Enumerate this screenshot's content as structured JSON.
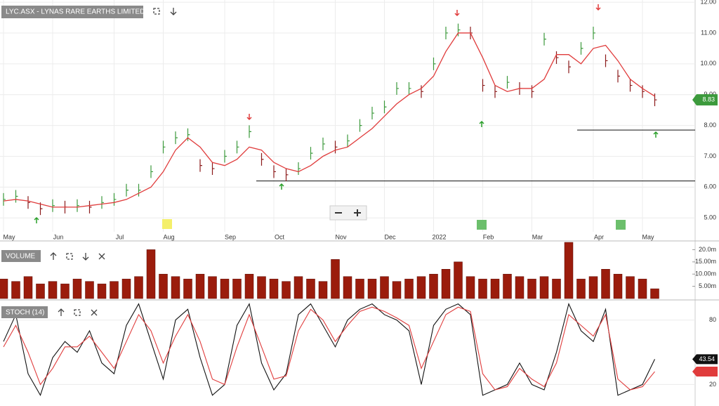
{
  "chart_data": [
    {
      "type": "ohlc",
      "title": "LYC.ASX - LYNAS RARE EARTHS LIMITED",
      "categories": [
        "May",
        null,
        null,
        null,
        "Jun",
        null,
        null,
        null,
        null,
        "Jul",
        null,
        null,
        null,
        "Aug",
        null,
        null,
        null,
        null,
        "Sep",
        null,
        null,
        null,
        "Oct",
        null,
        null,
        null,
        null,
        "Nov",
        null,
        null,
        null,
        "Dec",
        null,
        null,
        null,
        "2022",
        null,
        null,
        null,
        "Feb",
        null,
        null,
        null,
        "Mar",
        null,
        null,
        null,
        null,
        "Apr",
        null,
        null,
        null,
        "May",
        null
      ],
      "values": [
        5.6,
        5.7,
        5.5,
        5.3,
        5.4,
        5.35,
        5.4,
        5.35,
        5.5,
        5.6,
        5.9,
        5.9,
        6.5,
        7.3,
        7.6,
        7.7,
        6.7,
        6.6,
        7.0,
        7.3,
        7.8,
        6.9,
        6.5,
        6.4,
        6.6,
        7.1,
        7.4,
        7.3,
        7.5,
        8.0,
        8.4,
        8.6,
        9.2,
        9.2,
        9.1,
        10.0,
        11.0,
        11.1,
        11.0,
        9.3,
        9.1,
        9.4,
        9.2,
        9.1,
        10.8,
        10.2,
        9.9,
        10.5,
        11.0,
        10.1,
        9.6,
        9.3,
        9.1,
        8.83
      ],
      "up_color": "#3c9a3c",
      "down_color": "#8b1a1a",
      "moving_average": {
        "color": "#e03c3c",
        "values": [
          5.55,
          5.6,
          5.55,
          5.45,
          5.35,
          5.35,
          5.35,
          5.4,
          5.45,
          5.5,
          5.6,
          5.8,
          6.0,
          6.5,
          7.2,
          7.6,
          7.3,
          6.8,
          6.7,
          6.9,
          7.3,
          7.2,
          6.8,
          6.6,
          6.5,
          6.7,
          7.0,
          7.2,
          7.3,
          7.6,
          7.9,
          8.3,
          8.7,
          9.0,
          9.2,
          9.6,
          10.4,
          11.0,
          11.0,
          10.2,
          9.3,
          9.1,
          9.2,
          9.2,
          9.5,
          10.3,
          10.3,
          10.0,
          10.5,
          10.6,
          10.1,
          9.5,
          9.2,
          8.95
        ]
      },
      "support_levels": [
        6.2,
        7.85
      ],
      "ylim": [
        4.55,
        12.07
      ],
      "yticks": [
        {
          "value": 5,
          "label": "5.00"
        },
        {
          "value": 6,
          "label": "6.00"
        },
        {
          "value": 7,
          "label": "7.00"
        },
        {
          "value": 8,
          "label": "8.00"
        },
        {
          "value": 9,
          "label": "9.00"
        },
        {
          "value": 10,
          "label": "10.00"
        },
        {
          "value": 11,
          "label": "11.00"
        },
        {
          "value": 12,
          "label": "12.00"
        }
      ],
      "grid": true
    },
    {
      "type": "bar",
      "title": "VOLUME",
      "color": "#9b1c0c",
      "values": [
        8,
        7,
        9,
        6,
        7,
        6,
        8,
        7,
        6,
        7,
        8,
        9,
        20,
        10,
        9,
        8,
        10,
        9,
        8,
        8,
        10,
        9,
        8,
        7,
        9,
        8,
        7,
        16,
        9,
        8,
        8,
        9,
        7,
        8,
        9,
        10,
        12,
        15,
        9,
        8,
        8,
        10,
        9,
        8,
        9,
        8,
        23,
        8,
        9,
        12,
        10,
        9,
        8,
        4
      ],
      "ylim": [
        0,
        23
      ],
      "yticks": [
        {
          "value": 5,
          "label": "5.00m"
        },
        {
          "value": 10,
          "label": "10.00m"
        },
        {
          "value": 15,
          "label": "15.00m"
        },
        {
          "value": 20,
          "label": "20.0m"
        }
      ]
    },
    {
      "type": "line",
      "title": "STOCH (14)",
      "series": [
        {
          "color": "#111111",
          "values": [
            60,
            85,
            30,
            10,
            45,
            60,
            50,
            70,
            40,
            30,
            75,
            95,
            60,
            25,
            80,
            90,
            45,
            10,
            20,
            75,
            95,
            40,
            15,
            30,
            85,
            95,
            75,
            55,
            80,
            90,
            95,
            85,
            80,
            70,
            20,
            75,
            90,
            95,
            85,
            10,
            15,
            20,
            40,
            20,
            15,
            50,
            95,
            70,
            60,
            90,
            10,
            15,
            20,
            43.54
          ]
        },
        {
          "color": "#e03c3c",
          "values": [
            55,
            75,
            50,
            20,
            35,
            55,
            55,
            65,
            50,
            35,
            60,
            85,
            70,
            40,
            65,
            85,
            60,
            25,
            20,
            55,
            85,
            55,
            25,
            28,
            70,
            90,
            80,
            60,
            75,
            88,
            92,
            88,
            82,
            75,
            35,
            60,
            85,
            92,
            88,
            30,
            15,
            18,
            35,
            25,
            18,
            40,
            85,
            75,
            65,
            85,
            25,
            15,
            18,
            32
          ]
        }
      ],
      "ylim": [
        0,
        100
      ],
      "yticks": [
        20,
        80
      ]
    }
  ]
}
